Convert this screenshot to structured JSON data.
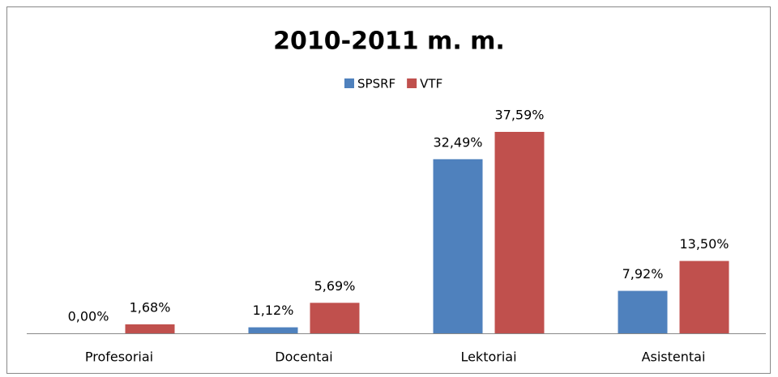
{
  "chart_data": {
    "type": "bar",
    "title": "2010-2011 m. m.",
    "categories": [
      "Profesoriai",
      "Docentai",
      "Lektoriai",
      "Asistentai"
    ],
    "series": [
      {
        "name": "SPSRF",
        "color": "#4f81bd",
        "values": [
          0,
          1.12,
          32.49,
          7.92
        ],
        "value_labels": [
          "0,00%",
          "1,12%",
          "32,49%",
          "7,92%"
        ]
      },
      {
        "name": "VTF",
        "color": "#c0504d",
        "values": [
          1.68,
          5.69,
          37.59,
          13.5
        ],
        "value_labels": [
          "1,68%",
          "5,69%",
          "37,59%",
          "13,50%"
        ]
      }
    ],
    "legend": "top"
  }
}
